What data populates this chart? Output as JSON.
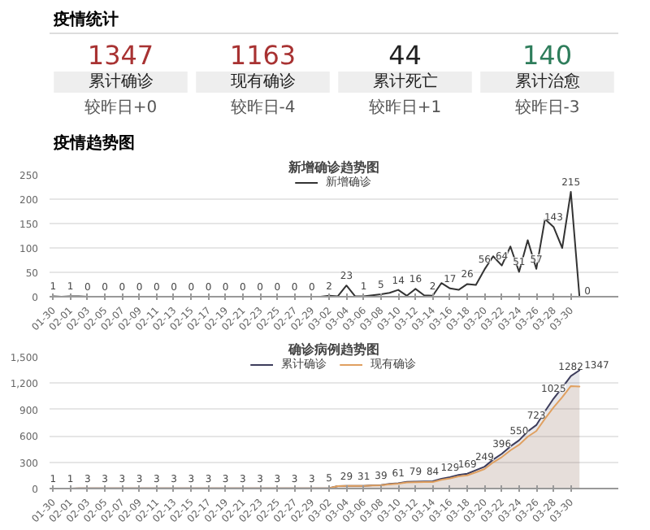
{
  "chart_data": [
    {
      "type": "other",
      "title": "疫情统计",
      "values": [
        1347,
        1163,
        44,
        140
      ],
      "colors": [
        "#a83232",
        "#a83232",
        "#222222",
        "#2e7d5b"
      ],
      "data_labels": true,
      "annotations": [
        "累计确诊",
        "现有确诊",
        "累计死亡",
        "累计治愈",
        "较昨日+0",
        "较昨日-4",
        "较昨日+1",
        "较昨日-3"
      ]
    },
    {
      "type": "line",
      "title": "新增确诊趋势图",
      "annotations": [
        "疫情趋势图"
      ],
      "categories": [
        "01-30",
        null,
        "02-01",
        null,
        "02-03",
        null,
        "02-05",
        null,
        "02-07",
        null,
        "02-09",
        null,
        "02-11",
        null,
        "02-13",
        null,
        "02-15",
        null,
        "02-17",
        null,
        "02-19",
        null,
        "02-21",
        null,
        "02-23",
        null,
        "02-25",
        null,
        "02-27",
        null,
        "02-29",
        null,
        "03-02",
        null,
        "03-04",
        null,
        "03-06",
        null,
        "03-08",
        null,
        "03-10",
        null,
        "03-12",
        null,
        "03-14",
        null,
        "03-16",
        null,
        "03-18",
        null,
        "03-20",
        null,
        "03-22",
        null,
        "03-24",
        null,
        "03-26",
        null,
        "03-28",
        null,
        "03-30",
        null
      ],
      "ylim": [
        0,
        250
      ],
      "yticks": [
        0,
        50,
        100,
        150,
        200,
        250
      ],
      "grid": "y",
      "legend": "top",
      "series": [
        {
          "name": "新增确诊",
          "color": "#333333",
          "values": [
            1,
            0,
            1,
            1,
            0,
            0,
            0,
            0,
            0,
            0,
            0,
            0,
            0,
            0,
            0,
            0,
            0,
            0,
            0,
            0,
            0,
            0,
            0,
            0,
            0,
            0,
            0,
            0,
            0,
            0,
            0,
            0,
            2,
            1,
            23,
            1,
            1,
            3,
            5,
            8,
            14,
            2,
            16,
            3,
            2,
            28,
            17,
            14,
            26,
            24,
            56,
            83,
            64,
            103,
            51,
            116,
            57,
            159,
            143,
            100,
            215,
            0
          ],
          "value_labels": [
            "1",
            null,
            "1",
            null,
            "0",
            null,
            "0",
            null,
            "0",
            null,
            "0",
            null,
            "0",
            null,
            "0",
            null,
            "0",
            null,
            "0",
            null,
            "0",
            null,
            "0",
            null,
            "0",
            null,
            "0",
            null,
            "0",
            null,
            "0",
            null,
            "2",
            null,
            "23",
            null,
            "1",
            null,
            "5",
            null,
            "14",
            null,
            "16",
            null,
            "2",
            null,
            "17",
            null,
            "26",
            null,
            "56",
            null,
            "64",
            null,
            "51",
            null,
            "57",
            null,
            "143",
            null,
            "215",
            "0"
          ]
        }
      ]
    },
    {
      "type": "area",
      "title": "确诊病例趋势图",
      "categories": [
        "01-30",
        null,
        "02-01",
        null,
        "02-03",
        null,
        "02-05",
        null,
        "02-07",
        null,
        "02-09",
        null,
        "02-11",
        null,
        "02-13",
        null,
        "02-15",
        null,
        "02-17",
        null,
        "02-19",
        null,
        "02-21",
        null,
        "02-23",
        null,
        "02-25",
        null,
        "02-27",
        null,
        "02-29",
        null,
        "03-02",
        null,
        "03-04",
        null,
        "03-06",
        null,
        "03-08",
        null,
        "03-10",
        null,
        "03-12",
        null,
        "03-14",
        null,
        "03-16",
        null,
        "03-18",
        null,
        "03-20",
        null,
        "03-22",
        null,
        "03-24",
        null,
        "03-26",
        null,
        "03-28",
        null,
        "03-30",
        null
      ],
      "ylim": [
        0,
        1500
      ],
      "yticks": [
        0,
        300,
        600,
        900,
        {
          "value": 1200,
          "label": "1,200"
        },
        {
          "value": 1500,
          "label": "1,500"
        }
      ],
      "grid": "y",
      "legend": "top",
      "series": [
        {
          "name": "累计确诊",
          "color": "#3d3d5c",
          "values": [
            1,
            1,
            1,
            2,
            3,
            3,
            3,
            3,
            3,
            3,
            3,
            3,
            3,
            3,
            3,
            3,
            3,
            3,
            3,
            3,
            3,
            3,
            3,
            3,
            3,
            3,
            3,
            3,
            3,
            3,
            3,
            3,
            5,
            28,
            29,
            30,
            31,
            36,
            39,
            53,
            61,
            77,
            79,
            82,
            84,
            112,
            129,
            155,
            169,
            209,
            249,
            330,
            396,
            480,
            550,
            650,
            723,
            880,
            1025,
            1150,
            1282,
            1347
          ],
          "value_labels": [
            "1",
            null,
            "1",
            null,
            "3",
            null,
            "3",
            null,
            "3",
            null,
            "3",
            null,
            "3",
            null,
            "3",
            null,
            "3",
            null,
            "3",
            null,
            "3",
            null,
            "3",
            null,
            "3",
            null,
            "3",
            null,
            "3",
            null,
            "3",
            null,
            "5",
            null,
            "29",
            null,
            "31",
            null,
            "39",
            null,
            "61",
            null,
            "79",
            null,
            "84",
            null,
            "129",
            null,
            "169",
            null,
            "249",
            null,
            "396",
            null,
            "550",
            null,
            "723",
            null,
            "1025",
            null,
            "1282",
            "1347"
          ]
        },
        {
          "name": "现有确诊",
          "color": "#e0a060",
          "values": [
            1,
            1,
            1,
            2,
            3,
            3,
            3,
            3,
            3,
            3,
            3,
            3,
            3,
            3,
            3,
            3,
            3,
            3,
            3,
            3,
            3,
            3,
            3,
            3,
            3,
            3,
            3,
            3,
            3,
            3,
            3,
            3,
            5,
            28,
            29,
            29,
            30,
            34,
            36,
            49,
            56,
            70,
            71,
            73,
            74,
            100,
            115,
            138,
            150,
            185,
            222,
            298,
            358,
            435,
            498,
            590,
            655,
            795,
            925,
            1040,
            1167,
            1163
          ]
        }
      ]
    }
  ]
}
